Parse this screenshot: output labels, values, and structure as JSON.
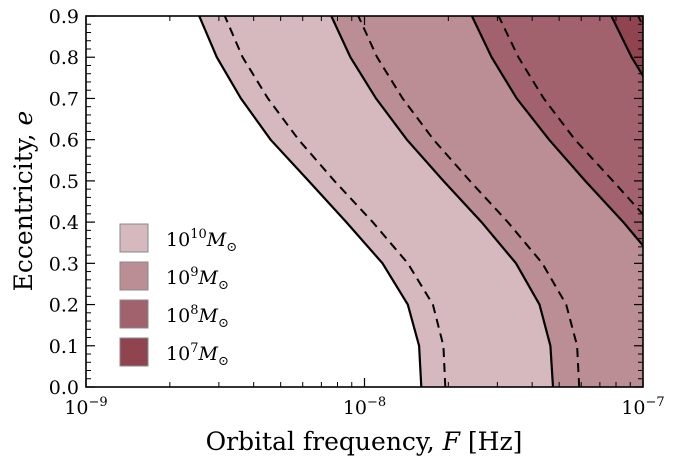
{
  "chart_data": {
    "type": "area",
    "title": "",
    "xlabel": {
      "prefix": "Orbital frequency, ",
      "var": "F",
      "suffix": " [Hz]"
    },
    "ylabel": {
      "prefix": "Eccentricity, ",
      "var": "e"
    },
    "xscale": "log",
    "xlim": [
      1e-09,
      1e-07
    ],
    "ylim": [
      0.0,
      0.9
    ],
    "grid": false,
    "legend_placement": "center-left",
    "x_ticks": [
      {
        "value": 1e-09,
        "base": "10",
        "exp": "−9"
      },
      {
        "value": 1e-08,
        "base": "10",
        "exp": "−8"
      },
      {
        "value": 1e-07,
        "base": "10",
        "exp": "−7"
      }
    ],
    "y_ticks": [
      {
        "value": 0.0,
        "label": "0.0"
      },
      {
        "value": 0.1,
        "label": "0.1"
      },
      {
        "value": 0.2,
        "label": "0.2"
      },
      {
        "value": 0.3,
        "label": "0.3"
      },
      {
        "value": 0.4,
        "label": "0.4"
      },
      {
        "value": 0.5,
        "label": "0.5"
      },
      {
        "value": 0.6,
        "label": "0.6"
      },
      {
        "value": 0.7,
        "label": "0.7"
      },
      {
        "value": 0.8,
        "label": "0.8"
      },
      {
        "value": 0.9,
        "label": "0.9"
      }
    ],
    "regions": [
      {
        "mass_exp": "10",
        "color": "#d5b9be",
        "boundary_solid_x": [
          1.6e-08,
          1.57e-08,
          1.43e-08,
          1.16e-08,
          8.6e-09,
          6.3e-09,
          4.6e-09,
          3.6e-09,
          2.95e-09,
          2.55e-09,
          2.2e-09
        ]
      },
      {
        "mass_exp": "9",
        "color": "#bb8d95",
        "boundary_solid_x": [
          4.75e-08,
          4.65e-08,
          4.25e-08,
          3.5e-08,
          2.63e-08,
          1.92e-08,
          1.42e-08,
          1.1e-08,
          8.9e-09,
          7.6e-09,
          6.5e-09
        ]
      },
      {
        "mass_exp": "8",
        "color": "#a2626d",
        "boundary_solid_x": [
          1.5e-07,
          1.48e-07,
          1.38e-07,
          1.13e-07,
          8.5e-08,
          6.2e-08,
          4.6e-08,
          3.52e-08,
          2.86e-08,
          2.43e-08,
          2.09e-08
        ]
      },
      {
        "mass_exp": "7",
        "color": "#8f4450",
        "boundary_solid_x": [
          4.7e-07,
          4.65e-07,
          4.35e-07,
          3.6e-07,
          2.7e-07,
          1.97e-07,
          1.46e-07,
          1.12e-07,
          9.1e-08,
          7.7e-08,
          6.6e-08
        ]
      }
    ],
    "boundary_e": [
      0.0,
      0.1,
      0.2,
      0.3,
      0.4,
      0.5,
      0.6,
      0.7,
      0.8,
      0.9,
      1.0
    ],
    "dashed_x": [
      [
        1.95e-08,
        1.92e-08,
        1.76e-08,
        1.43e-08,
        1.07e-08,
        7.8e-09,
        5.8e-09,
        4.5e-09,
        3.65e-09,
        3.15e-09,
        2.72e-09
      ],
      [
        5.9e-08,
        5.8e-08,
        5.3e-08,
        4.35e-08,
        3.27e-08,
        2.39e-08,
        1.77e-08,
        1.37e-08,
        1.11e-08,
        9.5e-09,
        8.1e-09
      ],
      [
        1.9e-07,
        1.87e-07,
        1.73e-07,
        1.42e-07,
        1.06e-07,
        7.8e-08,
        5.7e-08,
        4.4e-08,
        3.57e-08,
        3.03e-08,
        2.62e-08
      ],
      [
        5.9e-07,
        5.8e-07,
        5.4e-07,
        4.5e-07,
        3.4e-07,
        2.47e-07,
        1.82e-07,
        1.4e-07,
        1.14e-07,
        9.6e-08,
        8.2e-08
      ]
    ],
    "legend": [
      {
        "base": "10",
        "exp": "10",
        "symbol": "M",
        "sub": "⊙",
        "color": "#d5b9be"
      },
      {
        "base": "10",
        "exp": "9",
        "symbol": "M",
        "sub": "⊙",
        "color": "#bb8d95"
      },
      {
        "base": "10",
        "exp": "8",
        "symbol": "M",
        "sub": "⊙",
        "color": "#a2626d"
      },
      {
        "base": "10",
        "exp": "7",
        "symbol": "M",
        "sub": "⊙",
        "color": "#8f4450"
      }
    ]
  }
}
